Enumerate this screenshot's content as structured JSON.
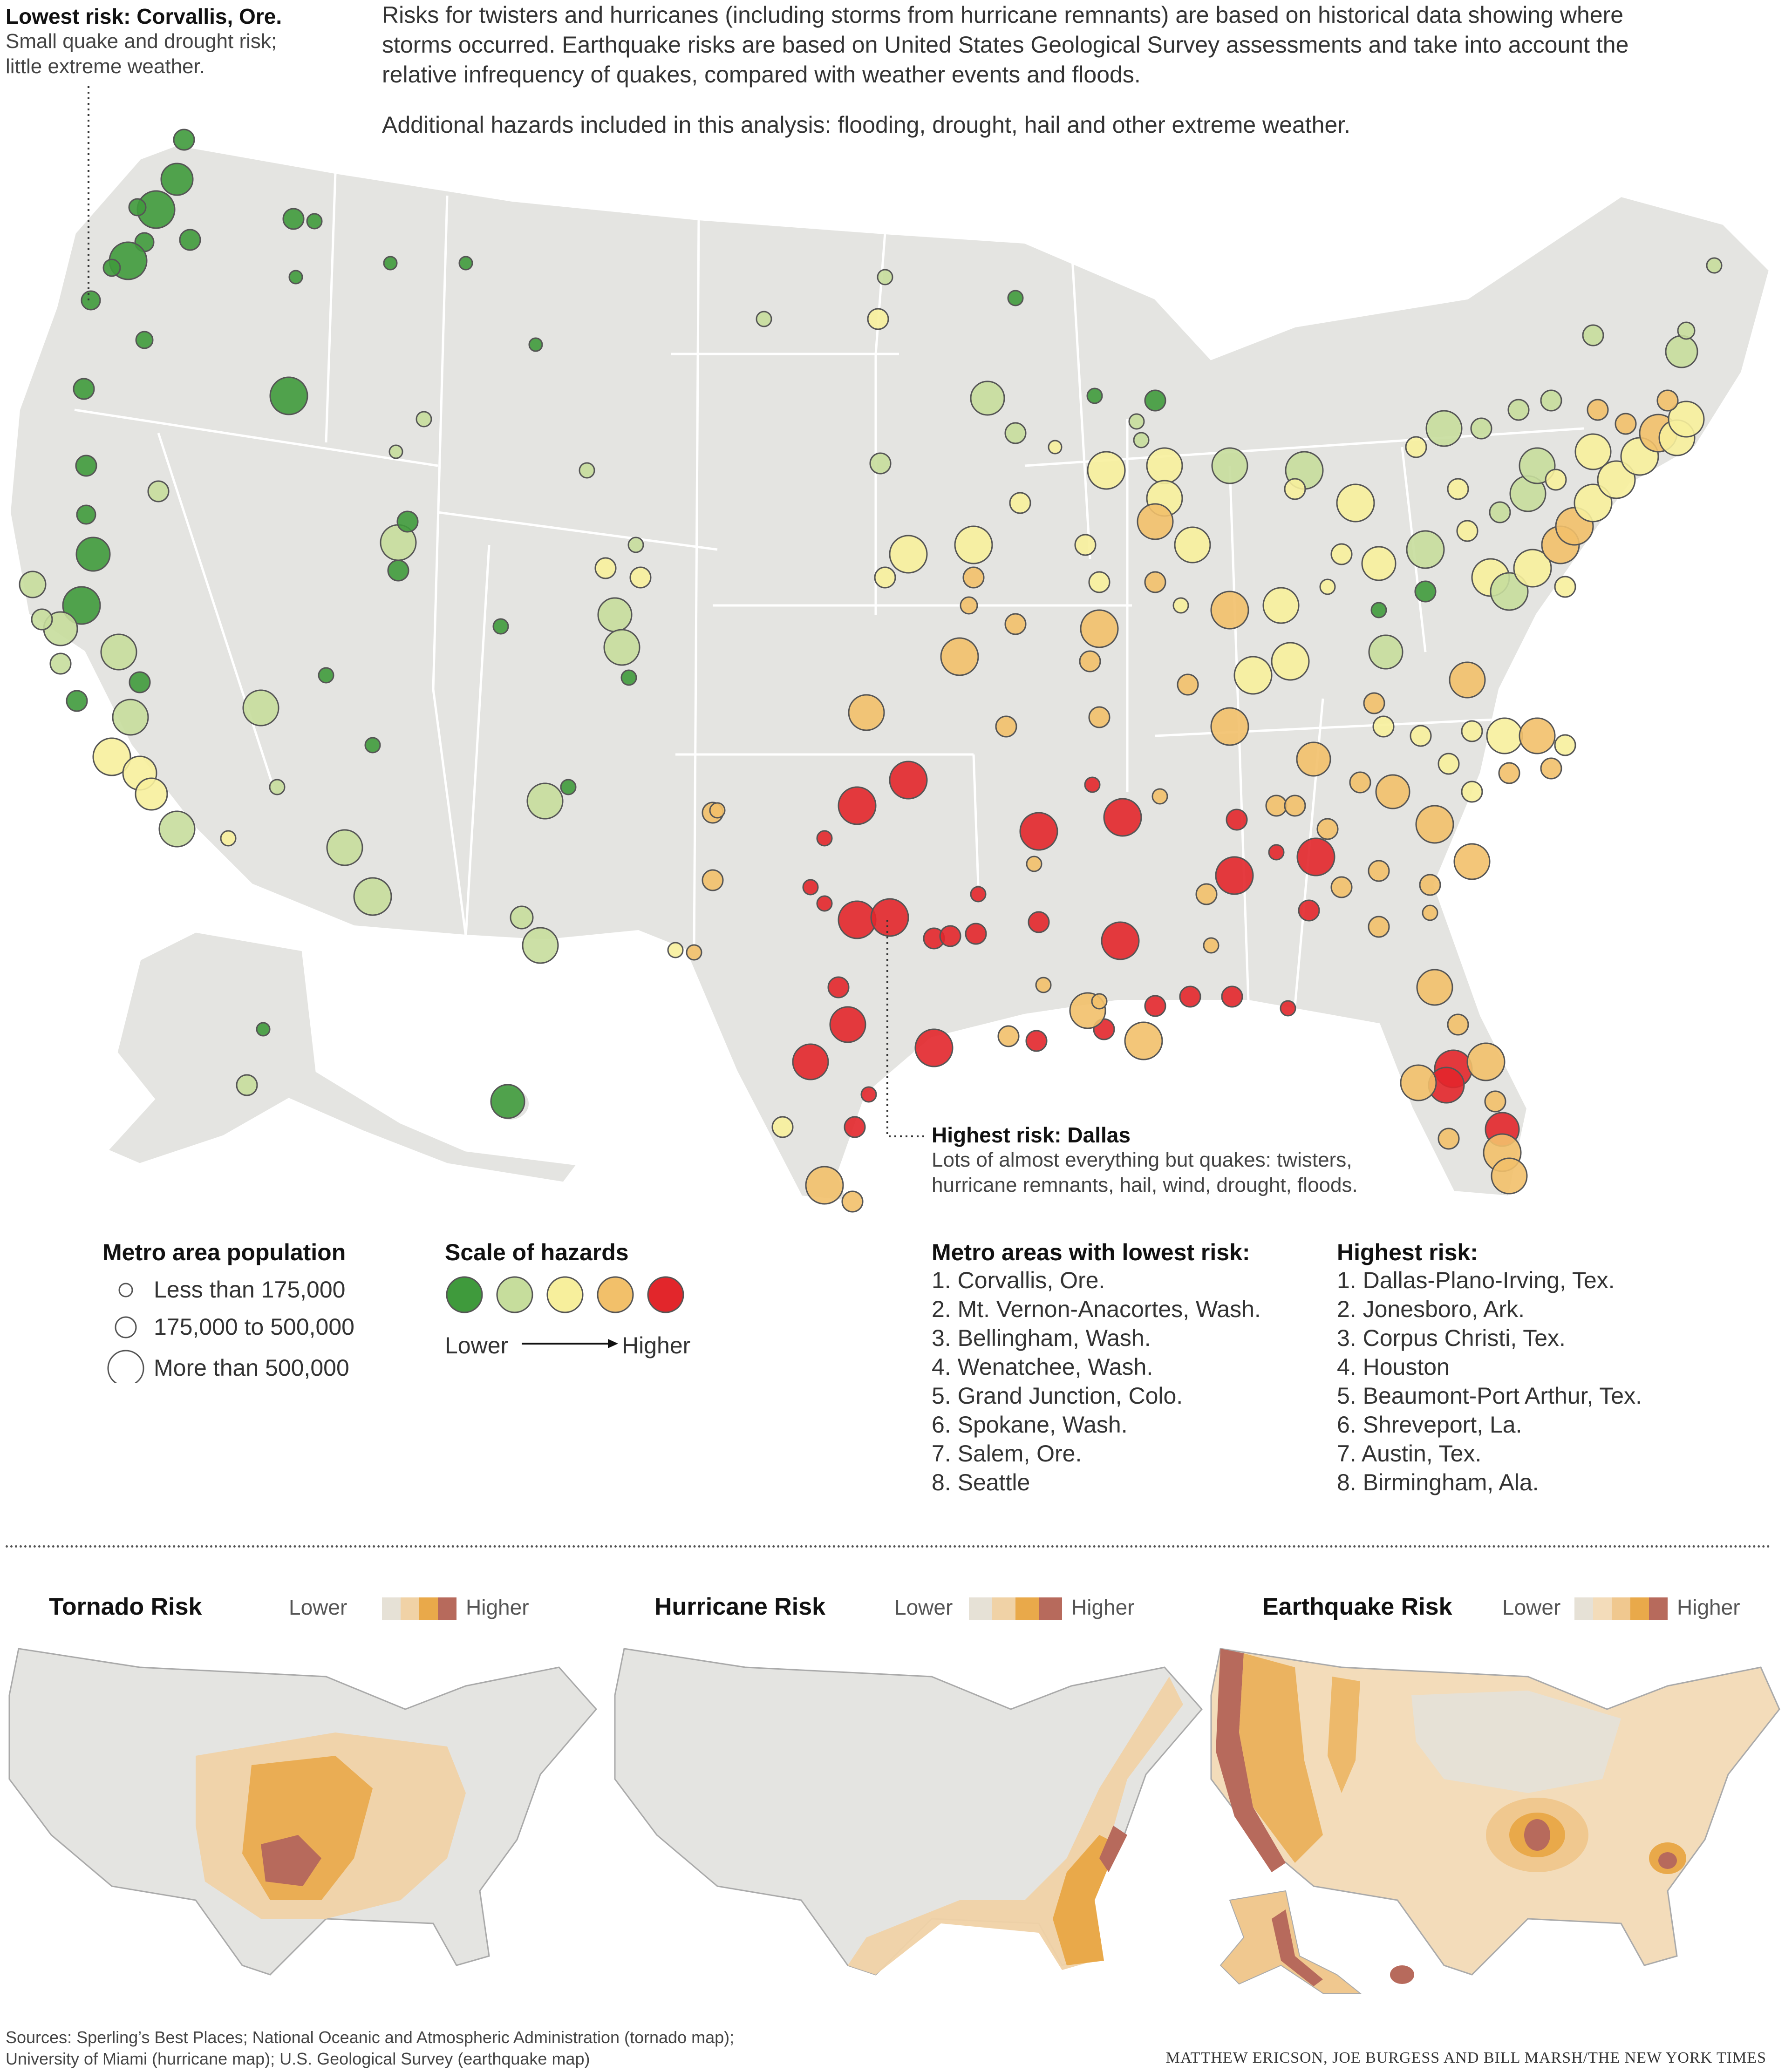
{
  "intro": {
    "paragraph1": "Risks for twisters and hurricanes (including storms from hurricane remnants) are based on historical data showing where storms occurred. Earthquake risks are based on United States Geological Survey assessments and take into account the relative infrequency of quakes, compared with weather events and floods.",
    "paragraph2": "Additional hazards included in this analysis: flooding, drought, hail and other extreme weather."
  },
  "callout_lowest": {
    "title": "Lowest risk: Corvallis, Ore.",
    "body_line1": "Small quake and drought risk;",
    "body_line2": "little extreme weather."
  },
  "callout_highest": {
    "title": "Highest risk: Dallas",
    "body_line1": "Lots of almost everything but quakes: twisters,",
    "body_line2": "hurricane remnants, hail, wind, drought, floods."
  },
  "legend_population": {
    "title": "Metro area population",
    "items": [
      "Less than 175,000",
      "175,000 to 500,000",
      "More than 500,000"
    ]
  },
  "legend_hazards": {
    "title": "Scale of hazards",
    "colors": [
      "#3f9a3c",
      "#c6dd9c",
      "#f7ef9c",
      "#f2c06a",
      "#e2262b"
    ],
    "lower": "Lower",
    "higher": "Higher"
  },
  "lowest_list": {
    "title": "Metro areas with lowest risk:",
    "items": [
      "1. Corvallis, Ore.",
      "2. Mt. Vernon-Anacortes, Wash.",
      "3. Bellingham, Wash.",
      "4. Wenatchee, Wash.",
      "5. Grand Junction, Colo.",
      "6. Spokane, Wash.",
      "7. Salem, Ore.",
      "8. Seattle"
    ]
  },
  "highest_list": {
    "title": "Highest risk:",
    "items": [
      "1. Dallas-Plano-Irving, Tex.",
      "2. Jonesboro, Ark.",
      "3. Corpus Christi, Tex.",
      "4. Houston",
      "5. Beaumont-Port Arthur, Tex.",
      "6. Shreveport, La.",
      "7. Austin, Tex.",
      "8. Birmingham, Ala."
    ]
  },
  "mini_maps": [
    {
      "title": "Tornado Risk",
      "lower": "Lower",
      "higher": "Higher",
      "scale_colors": [
        "#e6e1d6",
        "#f0d2a6",
        "#e9a94a",
        "#b76a5c"
      ]
    },
    {
      "title": "Hurricane Risk",
      "lower": "Lower",
      "higher": "Higher",
      "scale_colors": [
        "#e6e1d6",
        "#f0d2a6",
        "#e9a94a",
        "#b76a5c"
      ]
    },
    {
      "title": "Earthquake Risk",
      "lower": "Lower",
      "higher": "Higher",
      "scale_colors": [
        "#e6e1d6",
        "#f3dcba",
        "#f0c88f",
        "#e9a94a",
        "#b76a5c"
      ]
    }
  ],
  "sources": {
    "line1": "Sources: Sperling’s Best Places; National Oceanic and Atmospheric Administration (tornado map);",
    "line2": "University of Miami (hurricane map); U.S. Geological Survey (earthquake map)"
  },
  "credit": "MATTHEW ERICSON, JOE BURGESS AND BILL MARSH/THE NEW YORK TIMES",
  "map_colors": {
    "land": "#e4e4e1",
    "border": "#ffffff",
    "risk_1": "#3f9a3c",
    "risk_2": "#c6dd9c",
    "risk_3": "#f7ef9c",
    "risk_4": "#f2c06a",
    "risk_5": "#e2262b"
  }
}
